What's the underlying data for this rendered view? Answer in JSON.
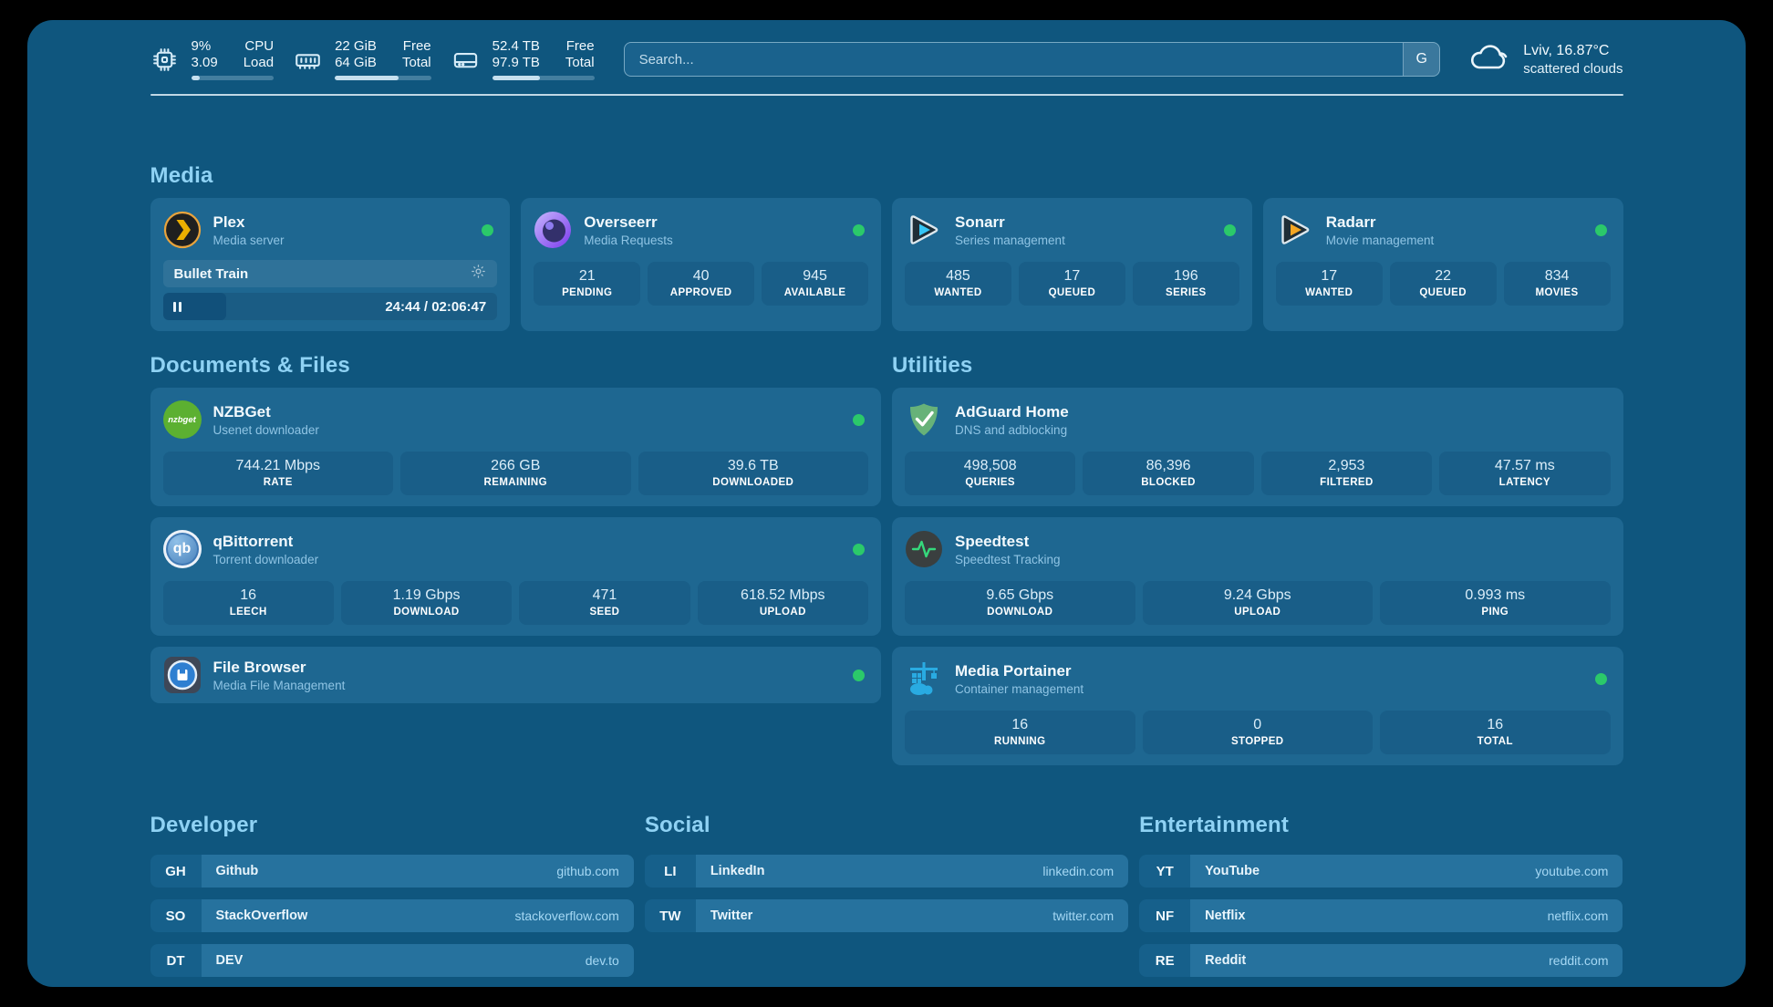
{
  "colors": {
    "status_online": "#2BC96A",
    "panel_bg": "#0F567E",
    "card_bg": "#1E6791",
    "section_title": "#8FD2F4"
  },
  "header": {
    "stats": [
      {
        "icon": "cpu-icon",
        "rows": [
          {
            "value": "9%",
            "label": "CPU"
          },
          {
            "value": "3.09",
            "label": "Load"
          }
        ],
        "progress": 10
      },
      {
        "icon": "ram-icon",
        "rows": [
          {
            "value": "22 GiB",
            "label": "Free"
          },
          {
            "value": "64 GiB",
            "label": "Total"
          }
        ],
        "progress": 66
      },
      {
        "icon": "disk-icon",
        "rows": [
          {
            "value": "52.4 TB",
            "label": "Free"
          },
          {
            "value": "97.9 TB",
            "label": "Total"
          }
        ],
        "progress": 47
      }
    ],
    "search": {
      "placeholder": "Search...",
      "button_label": "G"
    },
    "weather": {
      "location": "Lviv, 16.87°C",
      "condition": "scattered clouds"
    }
  },
  "sections": {
    "media": {
      "title": "Media",
      "apps": [
        {
          "name": "Plex",
          "desc": "Media server",
          "online": true,
          "player": {
            "title": "Bullet Train",
            "time": "24:44 / 02:06:47",
            "progress_pct": 19
          }
        },
        {
          "name": "Overseerr",
          "desc": "Media Requests",
          "online": true,
          "stats": [
            {
              "value": "21",
              "label": "PENDING"
            },
            {
              "value": "40",
              "label": "APPROVED"
            },
            {
              "value": "945",
              "label": "AVAILABLE"
            }
          ]
        },
        {
          "name": "Sonarr",
          "desc": "Series management",
          "online": true,
          "stats": [
            {
              "value": "485",
              "label": "WANTED"
            },
            {
              "value": "17",
              "label": "QUEUED"
            },
            {
              "value": "196",
              "label": "SERIES"
            }
          ]
        },
        {
          "name": "Radarr",
          "desc": "Movie management",
          "online": true,
          "stats": [
            {
              "value": "17",
              "label": "WANTED"
            },
            {
              "value": "22",
              "label": "QUEUED"
            },
            {
              "value": "834",
              "label": "MOVIES"
            }
          ]
        }
      ]
    },
    "documents": {
      "title": "Documents & Files",
      "apps": [
        {
          "name": "NZBGet",
          "desc": "Usenet downloader",
          "online": true,
          "icon_text": "nzbget",
          "stats": [
            {
              "value": "744.21 Mbps",
              "label": "RATE"
            },
            {
              "value": "266 GB",
              "label": "REMAINING"
            },
            {
              "value": "39.6 TB",
              "label": "DOWNLOADED"
            }
          ]
        },
        {
          "name": "qBittorrent",
          "desc": "Torrent downloader",
          "online": true,
          "icon_text": "qb",
          "stats": [
            {
              "value": "16",
              "label": "LEECH"
            },
            {
              "value": "1.19 Gbps",
              "label": "DOWNLOAD"
            },
            {
              "value": "471",
              "label": "SEED"
            },
            {
              "value": "618.52 Mbps",
              "label": "UPLOAD"
            }
          ]
        },
        {
          "name": "File Browser",
          "desc": "Media File Management",
          "online": true
        }
      ]
    },
    "utilities": {
      "title": "Utilities",
      "apps": [
        {
          "name": "AdGuard Home",
          "desc": "DNS and adblocking",
          "online": false,
          "stats": [
            {
              "value": "498,508",
              "label": "QUERIES"
            },
            {
              "value": "86,396",
              "label": "BLOCKED"
            },
            {
              "value": "2,953",
              "label": "FILTERED"
            },
            {
              "value": "47.57 ms",
              "label": "LATENCY"
            }
          ]
        },
        {
          "name": "Speedtest",
          "desc": "Speedtest Tracking",
          "online": false,
          "stats": [
            {
              "value": "9.65 Gbps",
              "label": "DOWNLOAD"
            },
            {
              "value": "9.24 Gbps",
              "label": "UPLOAD"
            },
            {
              "value": "0.993 ms",
              "label": "PING"
            }
          ]
        },
        {
          "name": "Media Portainer",
          "desc": "Container management",
          "online": true,
          "stats": [
            {
              "value": "16",
              "label": "RUNNING"
            },
            {
              "value": "0",
              "label": "STOPPED"
            },
            {
              "value": "16",
              "label": "TOTAL"
            }
          ]
        }
      ]
    },
    "links": {
      "developer": {
        "title": "Developer",
        "items": [
          {
            "abbr": "GH",
            "name": "Github",
            "url": "github.com"
          },
          {
            "abbr": "SO",
            "name": "StackOverflow",
            "url": "stackoverflow.com"
          },
          {
            "abbr": "DT",
            "name": "DEV",
            "url": "dev.to"
          }
        ]
      },
      "social": {
        "title": "Social",
        "items": [
          {
            "abbr": "LI",
            "name": "LinkedIn",
            "url": "linkedin.com"
          },
          {
            "abbr": "TW",
            "name": "Twitter",
            "url": "twitter.com"
          }
        ]
      },
      "entertainment": {
        "title": "Entertainment",
        "items": [
          {
            "abbr": "YT",
            "name": "YouTube",
            "url": "youtube.com"
          },
          {
            "abbr": "NF",
            "name": "Netflix",
            "url": "netflix.com"
          },
          {
            "abbr": "RE",
            "name": "Reddit",
            "url": "reddit.com"
          }
        ]
      }
    }
  }
}
